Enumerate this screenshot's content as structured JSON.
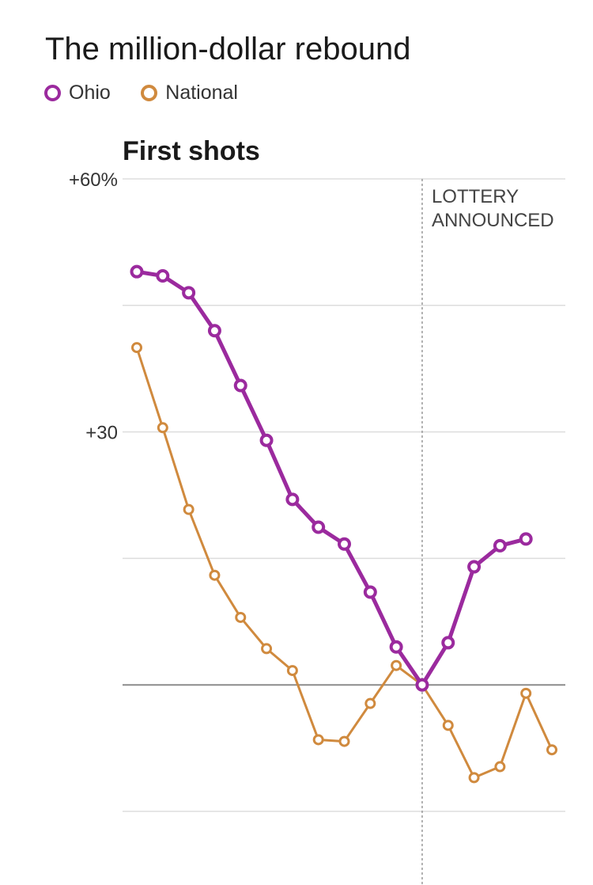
{
  "chart_data": {
    "type": "line",
    "title": "The million-dollar rebound",
    "subtitle": "First shots",
    "x": [
      1,
      2,
      3,
      4,
      5,
      6,
      7,
      8,
      9,
      10,
      11,
      12,
      13,
      14,
      15,
      16,
      17
    ],
    "xlim": [
      1,
      17
    ],
    "ylim": [
      -15,
      60
    ],
    "yticks": [
      {
        "value": 60,
        "label": "+60%"
      },
      {
        "value": 45,
        "label": ""
      },
      {
        "value": 30,
        "label": "+30"
      },
      {
        "value": 15,
        "label": ""
      },
      {
        "value": 0,
        "label": ""
      },
      {
        "value": -15,
        "label": ""
      }
    ],
    "grid": true,
    "legend_position": "top-left",
    "series": [
      {
        "name": "Ohio",
        "color": "#9b2a9e",
        "values": [
          49,
          48.5,
          46.5,
          42,
          35.5,
          29,
          22,
          18.7,
          16.7,
          11,
          4.5,
          0,
          5,
          14,
          16.5,
          17.3,
          null
        ]
      },
      {
        "name": "National",
        "color": "#d08a3e",
        "values": [
          40,
          30.5,
          20.8,
          13,
          8,
          4.3,
          1.7,
          -6.5,
          -6.7,
          -2.2,
          2.3,
          0,
          -4.8,
          -11,
          -9.7,
          -1,
          -7.7
        ]
      }
    ],
    "annotations": [
      {
        "x": 12,
        "lines": [
          "LOTTERY",
          "ANNOUNCED"
        ]
      }
    ]
  }
}
